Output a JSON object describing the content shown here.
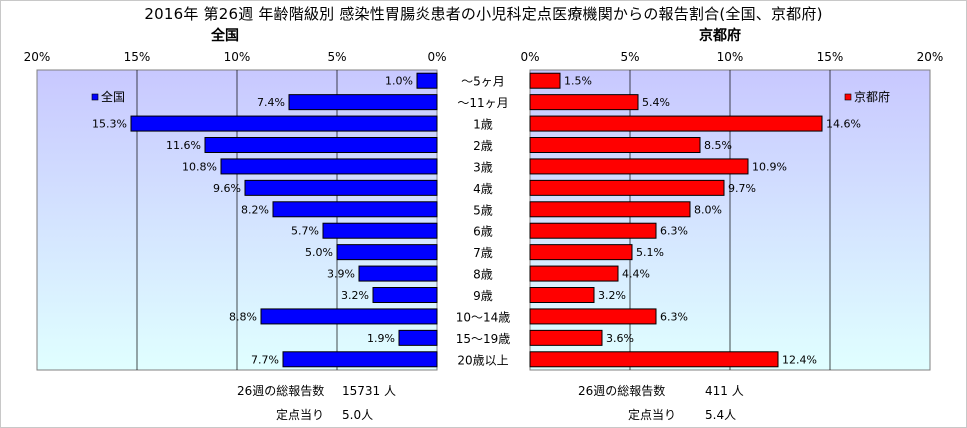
{
  "title": "2016年 第26週 年齢階級別 感染性胃腸炎患者の小児科定点医療機関からの報告割合(全国、京都府)",
  "footer": {
    "national_total_label": "26週の総報告数",
    "national_total_value": "15731 人",
    "national_per_label": "定点当り",
    "national_per_value": "5.0人",
    "kyoto_total_label": "26週の総報告数",
    "kyoto_total_value": "411 人",
    "kyoto_per_label": "定点当り",
    "kyoto_per_value": "5.4人"
  },
  "colors": {
    "national": "#0000ff",
    "kyoto": "#ff0000",
    "plot_top": "#c8c8ff",
    "plot_bottom": "#e0ffff"
  },
  "chart_data": [
    {
      "type": "bar",
      "orientation": "horizontal",
      "direction": "reversed",
      "title": "全国",
      "legend": "全国",
      "legend_position": "top-left",
      "xlim": [
        0,
        20
      ],
      "x_ticks": [
        "20%",
        "15%",
        "10%",
        "5%",
        "0%"
      ],
      "grid": true,
      "categories": [
        "～5ヶ月",
        "～11ヶ月",
        "1歳",
        "2歳",
        "3歳",
        "4歳",
        "5歳",
        "6歳",
        "7歳",
        "8歳",
        "9歳",
        "10～14歳",
        "15～19歳",
        "20歳以上"
      ],
      "values": [
        1.0,
        7.4,
        15.3,
        11.6,
        10.8,
        9.6,
        8.2,
        5.7,
        5.0,
        3.9,
        3.2,
        8.8,
        1.9,
        7.7
      ],
      "value_labels": [
        "1.0%",
        "7.4%",
        "15.3%",
        "11.6%",
        "10.8%",
        "9.6%",
        "8.2%",
        "5.7%",
        "5.0%",
        "3.9%",
        "3.2%",
        "8.8%",
        "1.9%",
        "7.7%"
      ]
    },
    {
      "type": "bar",
      "orientation": "horizontal",
      "title": "京都府",
      "legend": "京都府",
      "legend_position": "top-right",
      "xlim": [
        0,
        20
      ],
      "x_ticks": [
        "0%",
        "5%",
        "10%",
        "15%",
        "20%"
      ],
      "grid": true,
      "categories": [
        "～5ヶ月",
        "～11ヶ月",
        "1歳",
        "2歳",
        "3歳",
        "4歳",
        "5歳",
        "6歳",
        "7歳",
        "8歳",
        "9歳",
        "10～14歳",
        "15～19歳",
        "20歳以上"
      ],
      "values": [
        1.5,
        5.4,
        14.6,
        8.5,
        10.9,
        9.7,
        8.0,
        6.3,
        5.1,
        4.4,
        3.2,
        6.3,
        3.6,
        12.4
      ],
      "value_labels": [
        "1.5%",
        "5.4%",
        "14.6%",
        "8.5%",
        "10.9%",
        "9.7%",
        "8.0%",
        "6.3%",
        "5.1%",
        "4.4%",
        "3.2%",
        "6.3%",
        "3.6%",
        "12.4%"
      ]
    }
  ]
}
